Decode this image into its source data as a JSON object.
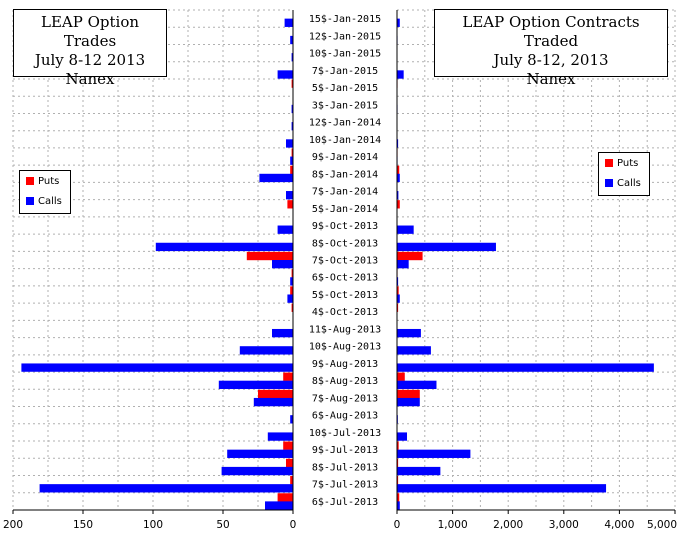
{
  "colors": {
    "puts": "#ff0000",
    "calls": "#0000ff",
    "grid": "#b0b0b0",
    "axis": "#000000"
  },
  "chart_data": {
    "type": "bar",
    "categories": [
      "15$-Jan-2015",
      "12$-Jan-2015",
      "10$-Jan-2015",
      "7$-Jan-2015",
      "5$-Jan-2015",
      "3$-Jan-2015",
      "12$-Jan-2014",
      "10$-Jan-2014",
      "9$-Jan-2014",
      "8$-Jan-2014",
      "7$-Jan-2014",
      "5$-Jan-2014",
      "9$-Oct-2013",
      "8$-Oct-2013",
      "7$-Oct-2013",
      "6$-Oct-2013",
      "5$-Oct-2013",
      "4$-Oct-2013",
      "11$-Aug-2013",
      "10$-Aug-2013",
      "9$-Aug-2013",
      "8$-Aug-2013",
      "7$-Aug-2013",
      "6$-Aug-2013",
      "10$-Jul-2013",
      "9$-Jul-2013",
      "8$-Jul-2013",
      "7$-Jul-2013",
      "6$-Jul-2013"
    ],
    "panels": [
      {
        "title": [
          "LEAP Option Trades",
          "July 8-12 2013",
          "Nanex"
        ],
        "direction": "left",
        "xlim": [
          0,
          200
        ],
        "ticks": [
          "200",
          "150",
          "100",
          "50",
          "0"
        ],
        "tick_values": [
          200,
          150,
          100,
          50,
          0
        ],
        "legend": [
          "Puts",
          "Calls"
        ],
        "series": [
          {
            "name": "Puts",
            "values": [
              0,
              0,
              0,
              0,
              1,
              0,
              0,
              0,
              1,
              2,
              0,
              4,
              0,
              0,
              33,
              1,
              2,
              1,
              0,
              0,
              0,
              7,
              25,
              0,
              0,
              7,
              5,
              2,
              11
            ]
          },
          {
            "name": "Calls",
            "values": [
              6,
              2,
              1,
              11,
              0,
              1,
              1,
              5,
              2,
              24,
              5,
              0,
              11,
              98,
              15,
              2,
              4,
              0,
              15,
              38,
              194,
              53,
              28,
              2,
              18,
              47,
              51,
              181,
              20
            ]
          }
        ]
      },
      {
        "title": [
          "LEAP Option Contracts Traded",
          "July 8-12, 2013",
          "Nanex"
        ],
        "direction": "right",
        "xlim": [
          0,
          5000
        ],
        "ticks": [
          "0",
          "1,000",
          "2,000",
          "3,000",
          "4,000",
          "5,000"
        ],
        "tick_values": [
          0,
          1000,
          2000,
          3000,
          4000,
          5000
        ],
        "legend": [
          "Puts",
          "Calls"
        ],
        "series": [
          {
            "name": "Puts",
            "values": [
              0,
              0,
              0,
              0,
              10,
              0,
              0,
              0,
              10,
              40,
              0,
              50,
              0,
              0,
              460,
              10,
              30,
              20,
              0,
              0,
              0,
              140,
              410,
              0,
              0,
              30,
              20,
              20,
              40
            ]
          },
          {
            "name": "Calls",
            "values": [
              50,
              10,
              5,
              120,
              0,
              10,
              5,
              20,
              10,
              50,
              25,
              0,
              300,
              1780,
              210,
              20,
              50,
              0,
              430,
              610,
              4620,
              710,
              410,
              15,
              180,
              1320,
              780,
              3760,
              50
            ]
          }
        ]
      }
    ]
  }
}
